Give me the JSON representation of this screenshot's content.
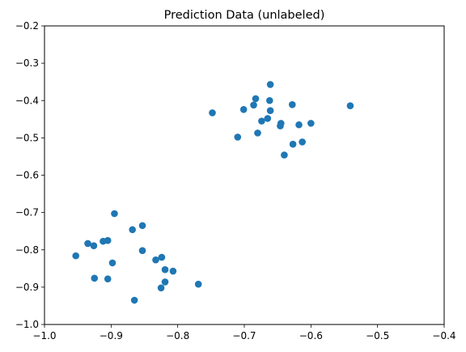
{
  "chart_data": {
    "type": "scatter",
    "title": "Prediction Data (unlabeled)",
    "xlabel": "",
    "ylabel": "",
    "xlim": [
      -1.0,
      -0.4
    ],
    "ylim": [
      -1.0,
      -0.2
    ],
    "x_ticks": [
      "−1.0",
      "−0.9",
      "−0.8",
      "−0.7",
      "−0.6",
      "−0.5",
      "−0.4"
    ],
    "y_ticks": [
      "−1.0",
      "−0.9",
      "−0.8",
      "−0.7",
      "−0.6",
      "−0.5",
      "−0.4",
      "−0.3",
      "−0.2"
    ],
    "x_tick_values": [
      -1.0,
      -0.9,
      -0.8,
      -0.7,
      -0.6,
      -0.5,
      -0.4
    ],
    "y_tick_values": [
      -1.0,
      -0.9,
      -0.8,
      -0.7,
      -0.6,
      -0.5,
      -0.4,
      -0.3,
      -0.2
    ],
    "grid": false,
    "marker_color": "#1f77b4",
    "points": [
      {
        "x": -0.661,
        "y": -0.357
      },
      {
        "x": -0.683,
        "y": -0.395
      },
      {
        "x": -0.662,
        "y": -0.4
      },
      {
        "x": -0.686,
        "y": -0.412
      },
      {
        "x": -0.701,
        "y": -0.424
      },
      {
        "x": -0.661,
        "y": -0.427
      },
      {
        "x": -0.628,
        "y": -0.411
      },
      {
        "x": -0.541,
        "y": -0.414
      },
      {
        "x": -0.748,
        "y": -0.433
      },
      {
        "x": -0.665,
        "y": -0.448
      },
      {
        "x": -0.674,
        "y": -0.455
      },
      {
        "x": -0.645,
        "y": -0.461
      },
      {
        "x": -0.646,
        "y": -0.468
      },
      {
        "x": -0.618,
        "y": -0.465
      },
      {
        "x": -0.6,
        "y": -0.461
      },
      {
        "x": -0.68,
        "y": -0.487
      },
      {
        "x": -0.71,
        "y": -0.498
      },
      {
        "x": -0.613,
        "y": -0.511
      },
      {
        "x": -0.627,
        "y": -0.517
      },
      {
        "x": -0.64,
        "y": -0.546
      },
      {
        "x": -0.895,
        "y": -0.703
      },
      {
        "x": -0.853,
        "y": -0.735
      },
      {
        "x": -0.868,
        "y": -0.746
      },
      {
        "x": -0.935,
        "y": -0.783
      },
      {
        "x": -0.905,
        "y": -0.775
      },
      {
        "x": -0.912,
        "y": -0.777
      },
      {
        "x": -0.926,
        "y": -0.789
      },
      {
        "x": -0.853,
        "y": -0.802
      },
      {
        "x": -0.953,
        "y": -0.816
      },
      {
        "x": -0.824,
        "y": -0.82
      },
      {
        "x": -0.833,
        "y": -0.827
      },
      {
        "x": -0.898,
        "y": -0.835
      },
      {
        "x": -0.819,
        "y": -0.853
      },
      {
        "x": -0.807,
        "y": -0.857
      },
      {
        "x": -0.925,
        "y": -0.876
      },
      {
        "x": -0.905,
        "y": -0.878
      },
      {
        "x": -0.819,
        "y": -0.886
      },
      {
        "x": -0.769,
        "y": -0.892
      },
      {
        "x": -0.825,
        "y": -0.902
      },
      {
        "x": -0.865,
        "y": -0.935
      }
    ]
  }
}
